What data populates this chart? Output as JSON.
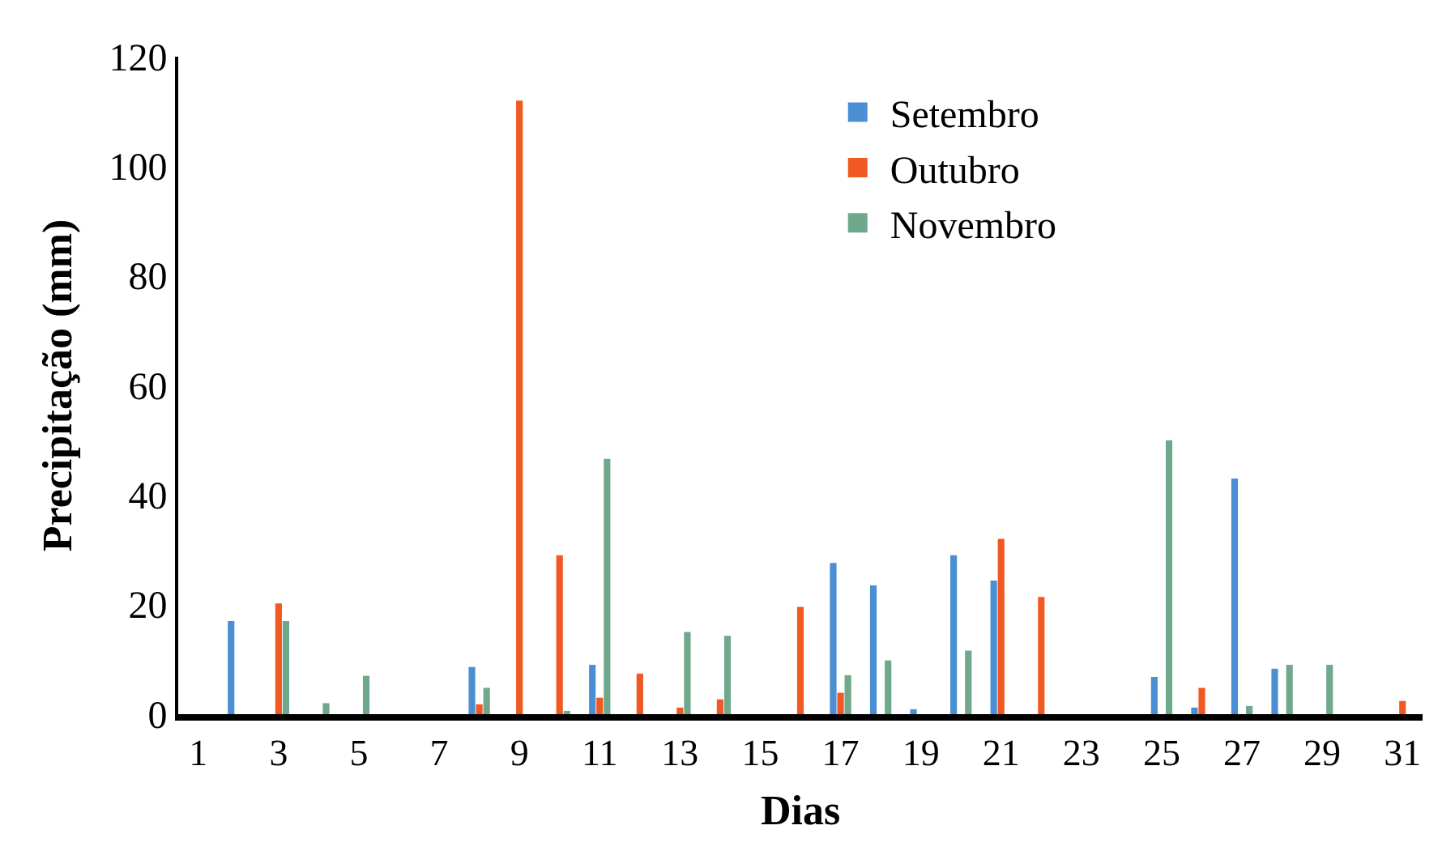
{
  "chart_data": {
    "type": "bar",
    "xlabel": "Dias",
    "ylabel": "Precipitação (mm)",
    "x": [
      2,
      3,
      4,
      5,
      8,
      9,
      10,
      11,
      12,
      13,
      14,
      16,
      17,
      18,
      19,
      20,
      21,
      22,
      25,
      26,
      27,
      28,
      29,
      31
    ],
    "series": [
      {
        "name": "Setembro",
        "color": "#4a8fd4",
        "values": [
          17,
          null,
          null,
          null,
          8.6,
          null,
          null,
          9,
          null,
          null,
          null,
          null,
          27.6,
          23.5,
          0.9,
          29,
          24.4,
          null,
          6.8,
          1.2,
          43,
          8.3,
          null,
          null
        ]
      },
      {
        "name": "Outubro",
        "color": "#f05a22",
        "values": [
          null,
          20.2,
          null,
          null,
          1.8,
          112,
          29,
          3,
          7.4,
          1.2,
          2.7,
          19.6,
          3.9,
          null,
          null,
          null,
          32,
          21.4,
          null,
          4.8,
          null,
          null,
          null,
          2.4
        ]
      },
      {
        "name": "Novembro",
        "color": "#6fa88a",
        "values": [
          null,
          17,
          2,
          7,
          4.8,
          null,
          0.6,
          46.6,
          null,
          15,
          14.3,
          null,
          7.1,
          9.8,
          null,
          11.6,
          null,
          null,
          50,
          null,
          1.5,
          9,
          9,
          null
        ]
      }
    ],
    "xlim": [
      0.5,
      31.5
    ],
    "xticks": [
      1,
      3,
      5,
      7,
      9,
      11,
      13,
      15,
      17,
      19,
      21,
      23,
      25,
      27,
      29,
      31
    ],
    "ylim": [
      0,
      120
    ],
    "yticks": [
      0,
      20,
      40,
      60,
      80,
      100,
      120
    ],
    "legend": "top right"
  }
}
